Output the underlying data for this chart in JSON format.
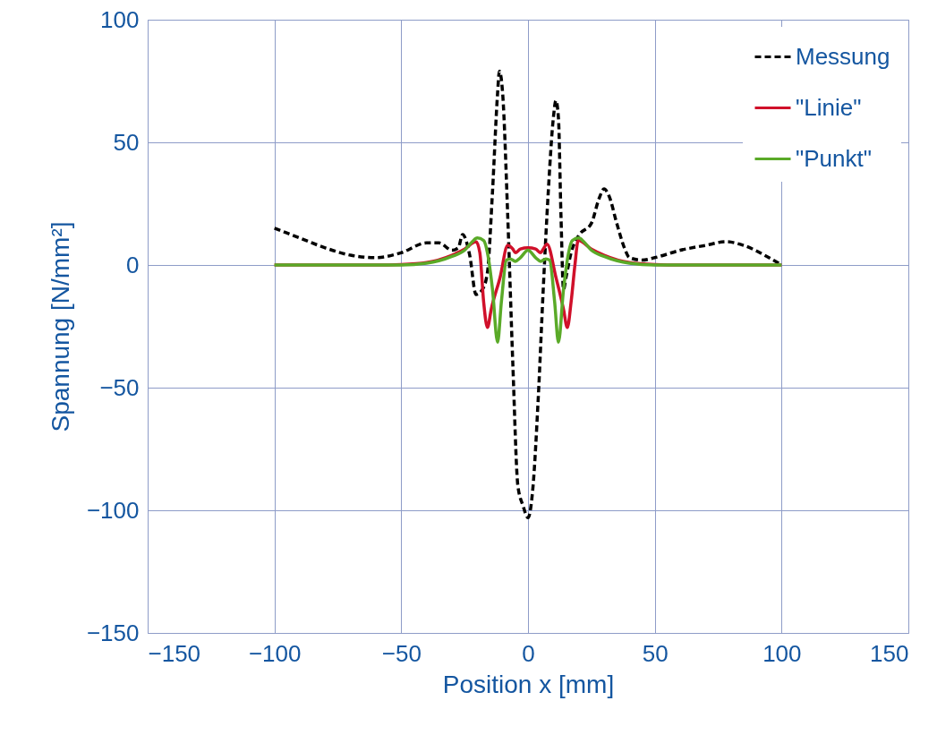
{
  "chart_data": {
    "type": "line",
    "xlabel": "Position x [mm]",
    "ylabel": "Spannung [N/mm²]",
    "xlim": [
      -150,
      150
    ],
    "xticks": [
      -150,
      -100,
      -50,
      0,
      50,
      100,
      150
    ],
    "ylim": [
      -150,
      100
    ],
    "yticks": [
      -150,
      -100,
      -50,
      0,
      50,
      100
    ],
    "grid": true,
    "legend": "top right",
    "series": [
      {
        "name": "Messung",
        "color": "#000000",
        "line_style": "dashed",
        "x": [
          -100,
          -90,
          -80,
          -70,
          -60,
          -50,
          -40,
          -35,
          -30,
          -27.5,
          -25.8,
          -23,
          -20.5,
          -18,
          -16,
          -14,
          -12,
          -11.3,
          -10,
          -8,
          -6,
          -4,
          -2,
          0,
          2,
          4,
          6,
          8,
          10,
          11,
          12,
          13,
          14,
          15,
          17,
          20,
          25,
          28,
          30,
          32,
          35,
          38,
          40,
          45,
          50,
          60,
          70,
          78,
          85,
          95,
          100
        ],
        "values": [
          15,
          11,
          7,
          4,
          3,
          5,
          9,
          9,
          6,
          7,
          12.4,
          4,
          -12,
          -10,
          -3,
          30,
          70,
          79,
          70,
          20,
          -40,
          -90,
          -98,
          -103,
          -90,
          -55,
          -10,
          30,
          60,
          67,
          60,
          20,
          -10,
          -5,
          5,
          12,
          17,
          27,
          31,
          28,
          17,
          7,
          3,
          2,
          3,
          6,
          8,
          9.5,
          8,
          3,
          0
        ]
      },
      {
        "name": "\"Linie\"",
        "color": "#d0102a",
        "line_style": "solid",
        "x": [
          -100,
          -60,
          -50,
          -40,
          -30,
          -25,
          -20.5,
          -19,
          -17.5,
          -16,
          -14.5,
          -11,
          -8,
          -6,
          -5,
          -3,
          0,
          3,
          5,
          6,
          7.5,
          11,
          14,
          15.5,
          17,
          18.5,
          19.8,
          25,
          30,
          40,
          50,
          60,
          100
        ],
        "values": [
          0,
          0,
          0.2,
          1,
          4,
          6.5,
          9.5,
          5,
          -15,
          -25.5,
          -18,
          -5,
          8,
          6.5,
          5,
          6.5,
          7,
          6.5,
          5,
          6.5,
          8.5,
          -5,
          -18,
          -25.5,
          -15,
          0,
          10,
          6.5,
          4,
          1,
          0.2,
          0,
          0
        ]
      },
      {
        "name": "\"Punkt\"",
        "color": "#5aaa28",
        "line_style": "solid",
        "x": [
          -100,
          -50,
          -40,
          -30,
          -25,
          -22,
          -20,
          -17.5,
          -16,
          -14,
          -12,
          -10.5,
          -8.5,
          -7,
          -5,
          -3,
          0,
          3,
          5,
          7,
          8.5,
          10.5,
          12,
          14,
          16,
          17.5,
          20,
          22,
          25,
          30,
          40,
          50,
          100
        ],
        "values": [
          0,
          0,
          0.7,
          3.5,
          6,
          9.5,
          11,
          10,
          5,
          -10,
          -31.5,
          -15,
          2,
          2.5,
          1.5,
          3,
          6,
          3,
          1.5,
          2.5,
          2,
          -15,
          -31.5,
          -10,
          5,
          10,
          11,
          9.5,
          6,
          3.5,
          0.7,
          0,
          0
        ]
      }
    ]
  }
}
